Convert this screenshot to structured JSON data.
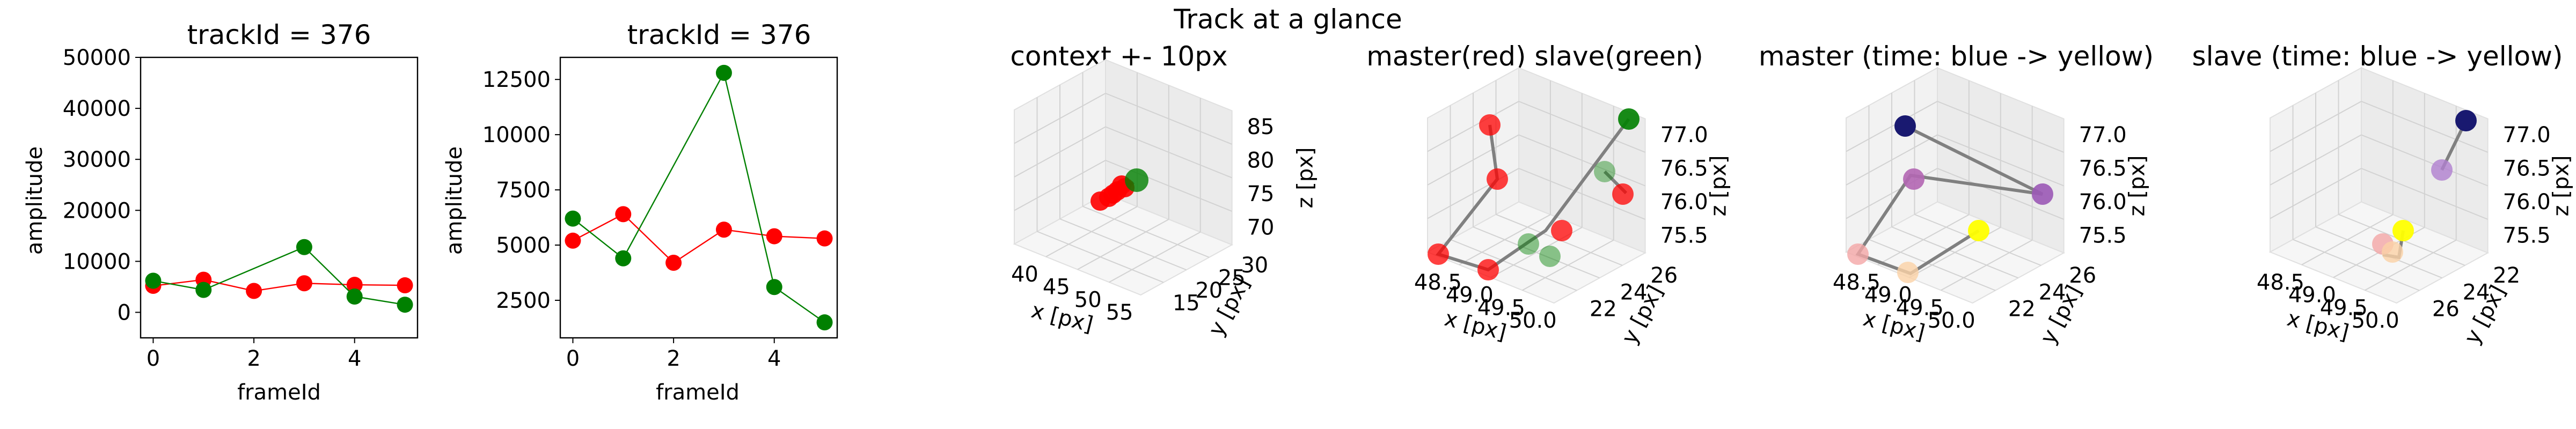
{
  "figure": {
    "suptitle": "Track at a glance"
  },
  "chart_data": [
    {
      "type": "line",
      "title": "trackId = 376",
      "xlabel": "frameId",
      "ylabel": "amplitude",
      "xlim": [
        -0.25,
        5.25
      ],
      "ylim": [
        -5000,
        50000
      ],
      "xticks": [
        "0",
        "2",
        "4"
      ],
      "yticks": [
        "0",
        "10000",
        "20000",
        "30000",
        "40000",
        "50000"
      ],
      "series": [
        {
          "color": "#ff0000",
          "x": [
            0,
            1,
            2,
            3,
            4,
            5
          ],
          "y": [
            5200,
            6400,
            4200,
            5700,
            5400,
            5300
          ]
        },
        {
          "color": "#008000",
          "x": [
            0,
            1,
            3,
            4,
            5
          ],
          "y": [
            6200,
            4400,
            12800,
            3100,
            1500
          ]
        }
      ]
    },
    {
      "type": "line",
      "title": "trackId = 376",
      "xlabel": "frameId",
      "ylabel": "amplitude",
      "xlim": [
        -0.25,
        5.25
      ],
      "ylim": [
        800,
        13500
      ],
      "xticks": [
        "0",
        "2",
        "4"
      ],
      "yticks": [
        "2500",
        "5000",
        "7500",
        "10000",
        "12500"
      ],
      "series": [
        {
          "color": "#ff0000",
          "x": [
            0,
            1,
            2,
            3,
            4,
            5
          ],
          "y": [
            5200,
            6400,
            4200,
            5700,
            5400,
            5300
          ]
        },
        {
          "color": "#008000",
          "x": [
            0,
            1,
            3,
            4,
            5
          ],
          "y": [
            6200,
            4400,
            12800,
            3100,
            1500
          ]
        }
      ]
    },
    {
      "type": "scatter",
      "title": "context +- 10px",
      "xlabel": "x [px]",
      "ylabel": "y [px]",
      "zlabel": "z [px]",
      "xticks": [
        "40",
        "45",
        "50",
        "55"
      ],
      "yticks": [
        "15",
        "20",
        "25",
        "30"
      ],
      "zticks": [
        "70",
        "75",
        "80",
        "85"
      ]
    },
    {
      "type": "scatter",
      "title": "master(red) slave(green)",
      "xlabel": "x [px]",
      "ylabel": "y [px]",
      "zlabel": "z [px]",
      "xticks": [
        "48.5",
        "49.0",
        "49.5",
        "50.0"
      ],
      "yticks": [
        "22",
        "24",
        "26"
      ],
      "zticks": [
        "75.5",
        "76.0",
        "76.5",
        "77.0"
      ]
    },
    {
      "type": "scatter",
      "title": "master (time: blue -> yellow)",
      "xlabel": "x [px]",
      "ylabel": "y [px]",
      "zlabel": "z [px]",
      "xticks": [
        "48.5",
        "49.0",
        "49.5",
        "50.0"
      ],
      "yticks": [
        "22",
        "24",
        "26"
      ],
      "zticks": [
        "75.5",
        "76.0",
        "76.5",
        "77.0"
      ]
    },
    {
      "type": "scatter",
      "title": "slave (time: blue -> yellow)",
      "xlabel": "x [px]",
      "ylabel": "y [px]",
      "zlabel": "z [px]",
      "xticks": [
        "48.5",
        "49.0",
        "49.5",
        "50.0"
      ],
      "yticks": [
        "26",
        "24",
        "22"
      ],
      "zticks": [
        "75.5",
        "76.0",
        "76.5",
        "77.0"
      ]
    }
  ]
}
